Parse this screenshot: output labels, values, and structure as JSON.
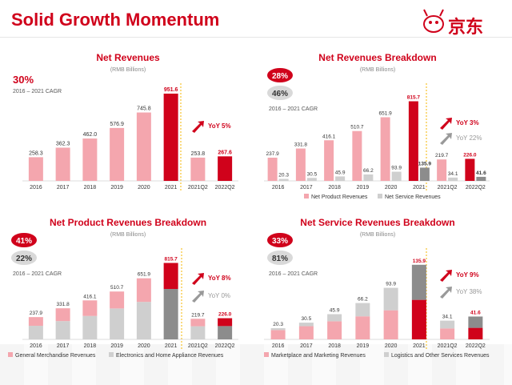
{
  "page": {
    "title": "Solid Growth Momentum",
    "logo_text": "京东"
  },
  "colors": {
    "brand_red": "#d0021b",
    "pink": "#f4a6ae",
    "grey": "#cfcfcf",
    "dark_grey": "#8c8c8c",
    "badge_red": "#d0021b",
    "badge_grey": "#d9d9d9",
    "yoy_grey": "#999999",
    "separator": "#f5b700"
  },
  "chart_data": [
    {
      "type": "bar",
      "title": "Net Revenues",
      "subtitle": "(RMB Billions)",
      "cagr": {
        "badges": [
          "30%"
        ],
        "caption": "2016 – 2021 CAGR"
      },
      "categories": [
        "2016",
        "2017",
        "2018",
        "2019",
        "2020",
        "2021",
        "2021Q2",
        "2022Q2"
      ],
      "series": [
        {
          "values": [
            258.3,
            362.3,
            462.0,
            576.9,
            745.8,
            951.6,
            253.8,
            267.6
          ]
        }
      ],
      "value_labels": [
        "258.3",
        "362.3",
        "462.0",
        "576.9",
        "745.8",
        "951.6",
        "253.8",
        "267.6"
      ],
      "yoy": [
        {
          "text": "YoY 5%",
          "style": "red"
        }
      ],
      "legend": []
    },
    {
      "type": "bar",
      "title": "Net Revenues Breakdown",
      "subtitle": "(RMB Billions)",
      "cagr": {
        "badges": [
          "28%",
          "46%"
        ],
        "caption": "2016 – 2021 CAGR"
      },
      "categories": [
        "2016",
        "2017",
        "2018",
        "2019",
        "2020",
        "2021",
        "2021Q2",
        "2022Q2"
      ],
      "series": [
        {
          "name": "Net Product Revenues",
          "values": [
            237.9,
            331.8,
            416.1,
            510.7,
            651.9,
            815.7,
            219.7,
            226.0
          ],
          "labels": [
            "237.9",
            "331.8",
            "416.1",
            "510.7",
            "651.9",
            "815.7",
            "219.7",
            "226.0"
          ]
        },
        {
          "name": "Net Service Revenues",
          "values": [
            20.3,
            30.5,
            45.9,
            66.2,
            93.9,
            135.9,
            34.1,
            41.6
          ],
          "labels": [
            "20.3",
            "30.5",
            "45.9",
            "66.2",
            "93.9",
            "135.9",
            "34.1",
            "41.6"
          ]
        }
      ],
      "yoy": [
        {
          "text": "YoY 3%",
          "style": "red"
        },
        {
          "text": "YoY 22%",
          "style": "grey"
        }
      ],
      "legend": [
        "Net Product Revenues",
        "Net Service Revenues"
      ]
    },
    {
      "type": "bar",
      "stacked": true,
      "title": "Net Product Revenues Breakdown",
      "subtitle": "(RMB Billions)",
      "cagr": {
        "badges": [
          "41%",
          "22%"
        ],
        "caption": "2016 – 2021 CAGR"
      },
      "categories": [
        "2016",
        "2017",
        "2018",
        "2019",
        "2020",
        "2021",
        "2021Q2",
        "2022Q2"
      ],
      "totals": [
        237.9,
        331.8,
        416.1,
        510.7,
        651.9,
        815.7,
        219.7,
        226.0
      ],
      "total_labels": [
        "237.9",
        "331.8",
        "416.1",
        "510.7",
        "651.9",
        "815.7",
        "219.7",
        "226.0"
      ],
      "series": [
        {
          "name": "Electronics and Home Appliance Revenues",
          "values": [
            145,
            195,
            250,
            330,
            400,
            538,
            140,
            142
          ]
        },
        {
          "name": "General Merchandise Revenues",
          "values": [
            92.9,
            136.8,
            166.1,
            180.7,
            251.9,
            277.7,
            79.7,
            84.0
          ]
        }
      ],
      "yoy": [
        {
          "text": "YoY 8%",
          "style": "red"
        },
        {
          "text": "YoY 0%",
          "style": "grey"
        }
      ],
      "legend": [
        "General Merchandise Revenues",
        "Electronics and Home Appliance Revenues"
      ]
    },
    {
      "type": "bar",
      "stacked": true,
      "title": "Net Service Revenues Breakdown",
      "subtitle": "(RMB Billions)",
      "cagr": {
        "badges": [
          "33%",
          "81%"
        ],
        "caption": "2016 – 2021 CAGR"
      },
      "categories": [
        "2016",
        "2017",
        "2018",
        "2019",
        "2020",
        "2021",
        "2021Q2",
        "2022Q2"
      ],
      "totals": [
        20.3,
        30.5,
        45.9,
        66.2,
        93.9,
        135.9,
        34.1,
        41.6
      ],
      "total_labels": [
        "20.3",
        "30.5",
        "45.9",
        "66.2",
        "93.9",
        "135.9",
        "34.1",
        "41.6"
      ],
      "series": [
        {
          "name": "Marketplace and Marketing Revenues",
          "values": [
            17,
            24,
            33,
            42,
            53,
            72,
            20,
            21
          ]
        },
        {
          "name": "Logistics and Other Services Revenues",
          "values": [
            3.3,
            6.5,
            12.9,
            24.2,
            40.9,
            63.9,
            14.1,
            20.6
          ]
        }
      ],
      "yoy": [
        {
          "text": "YoY 9%",
          "style": "red"
        },
        {
          "text": "YoY 38%",
          "style": "grey"
        }
      ],
      "legend": [
        "Marketplace and Marketing Revenues",
        "Logistics and Other Services Revenues"
      ]
    }
  ]
}
